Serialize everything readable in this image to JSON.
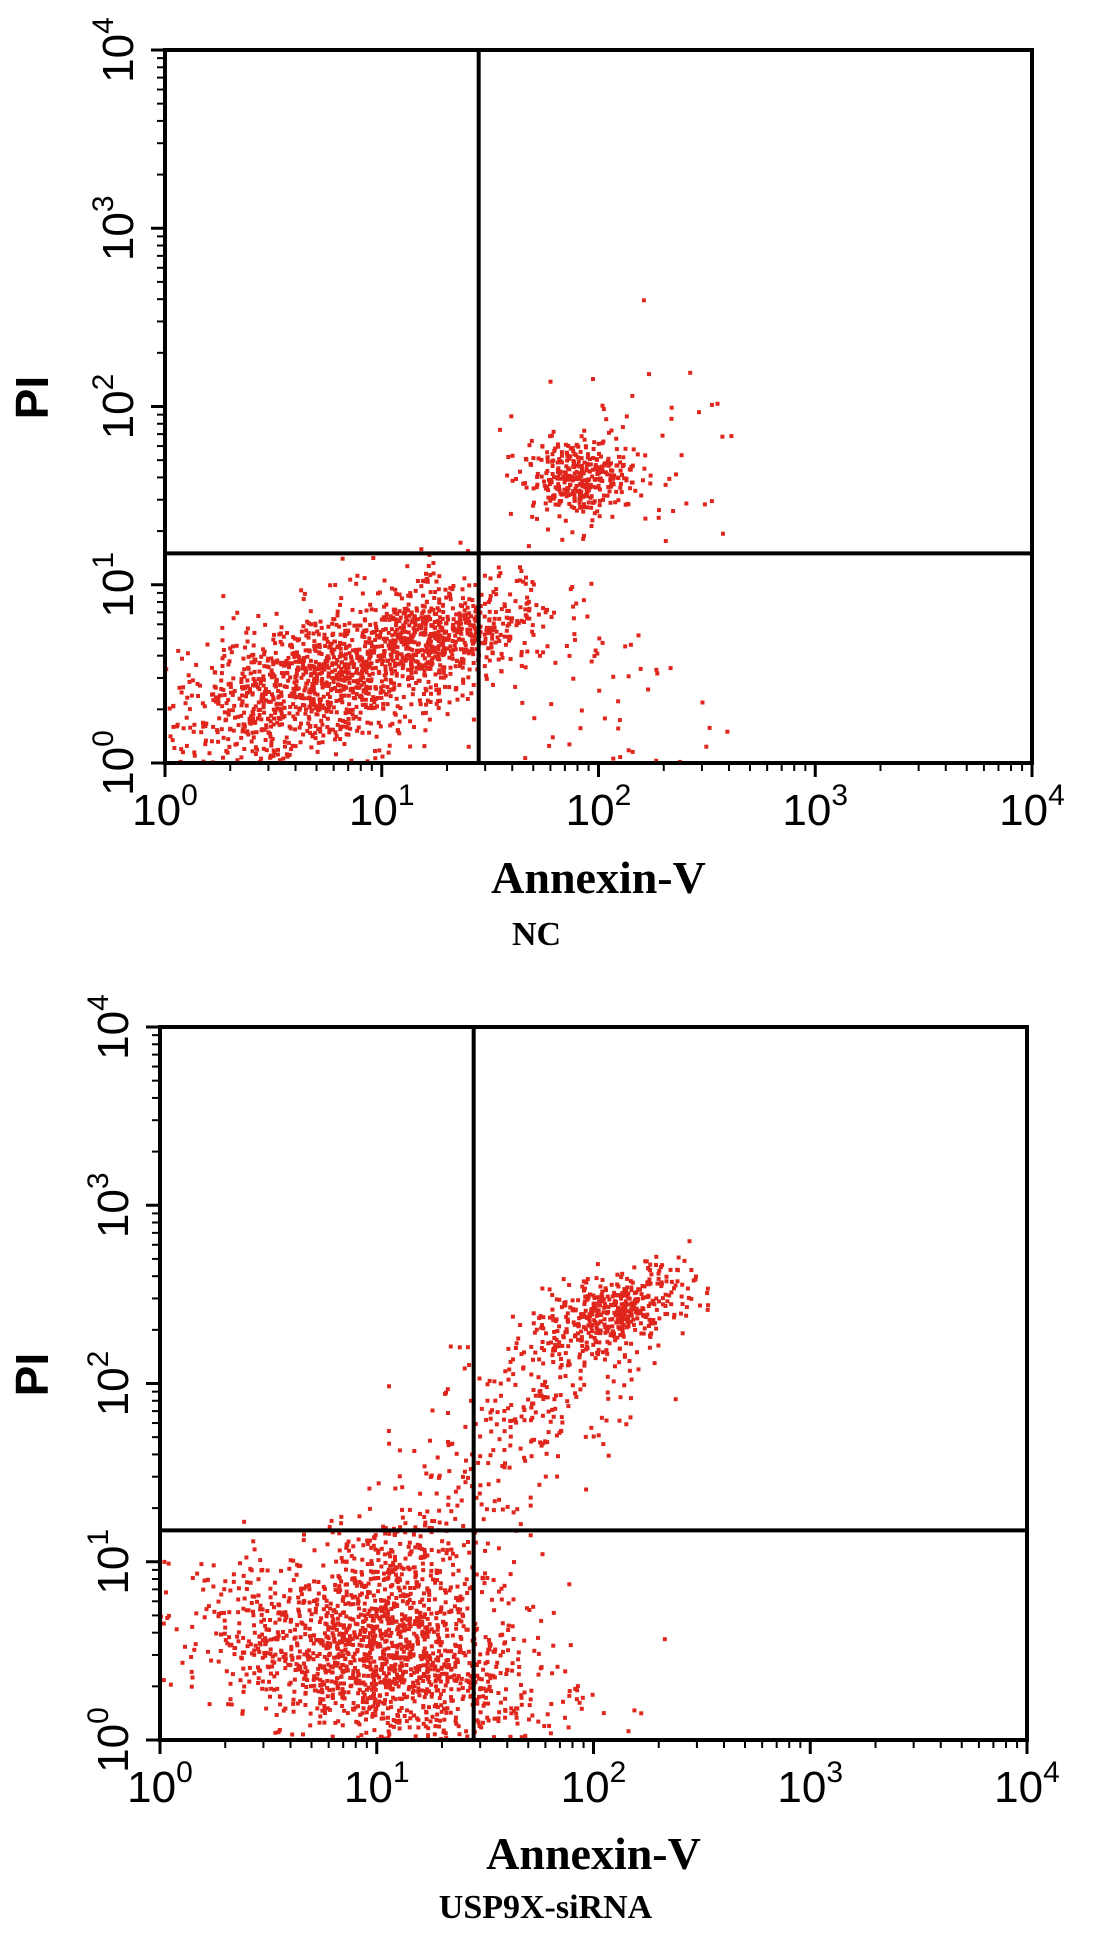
{
  "chart_data": [
    {
      "type": "scatter",
      "title": "NC",
      "xlabel": "Annexin-V",
      "ylabel": "PI",
      "x_scale": "log",
      "y_scale": "log",
      "xlim": [
        1,
        10000
      ],
      "ylim": [
        1,
        10000
      ],
      "x_ticks": [
        {
          "value": 1,
          "base": "10",
          "exp": "0"
        },
        {
          "value": 10,
          "base": "10",
          "exp": "1"
        },
        {
          "value": 100,
          "base": "10",
          "exp": "2"
        },
        {
          "value": 1000,
          "base": "10",
          "exp": "3"
        },
        {
          "value": 10000,
          "base": "10",
          "exp": "4"
        }
      ],
      "y_ticks": [
        {
          "value": 1,
          "base": "10",
          "exp": "0"
        },
        {
          "value": 10,
          "base": "10",
          "exp": "1"
        },
        {
          "value": 100,
          "base": "10",
          "exp": "2"
        },
        {
          "value": 1000,
          "base": "10",
          "exp": "3"
        },
        {
          "value": 10000,
          "base": "10",
          "exp": "4"
        }
      ],
      "quadrant_gate": {
        "x": 28,
        "y": 15
      },
      "point_color": "#e0261c",
      "grid": false,
      "legend": "none",
      "populations": [
        {
          "center_log": [
            0.75,
            0.45
          ],
          "spread_log": [
            0.45,
            0.2
          ],
          "orientation_deg": 28,
          "count": 1400
        },
        {
          "center_log": [
            1.25,
            0.7
          ],
          "spread_log": [
            0.25,
            0.12
          ],
          "orientation_deg": 20,
          "count": 450
        },
        {
          "center_log": [
            1.9,
            1.6
          ],
          "spread_log": [
            0.12,
            0.11
          ],
          "orientation_deg": 10,
          "count": 350
        },
        {
          "center_log": [
            1.9,
            0.3
          ],
          "spread_log": [
            0.35,
            0.35
          ],
          "orientation_deg": 0,
          "count": 70
        },
        {
          "center_log": [
            2.1,
            1.7
          ],
          "spread_log": [
            0.3,
            0.25
          ],
          "orientation_deg": 0,
          "count": 50
        }
      ]
    },
    {
      "type": "scatter",
      "title": "USP9X-siRNA",
      "xlabel": "Annexin-V",
      "ylabel": "PI",
      "x_scale": "log",
      "y_scale": "log",
      "xlim": [
        1,
        10000
      ],
      "ylim": [
        1,
        10000
      ],
      "x_ticks": [
        {
          "value": 1,
          "base": "10",
          "exp": "0"
        },
        {
          "value": 10,
          "base": "10",
          "exp": "1"
        },
        {
          "value": 100,
          "base": "10",
          "exp": "2"
        },
        {
          "value": 1000,
          "base": "10",
          "exp": "3"
        },
        {
          "value": 10000,
          "base": "10",
          "exp": "4"
        }
      ],
      "y_ticks": [
        {
          "value": 1,
          "base": "10",
          "exp": "0"
        },
        {
          "value": 10,
          "base": "10",
          "exp": "1"
        },
        {
          "value": 100,
          "base": "10",
          "exp": "2"
        },
        {
          "value": 1000,
          "base": "10",
          "exp": "3"
        },
        {
          "value": 10000,
          "base": "10",
          "exp": "4"
        }
      ],
      "quadrant_gate": {
        "x": 28,
        "y": 15
      },
      "point_color": "#e0261c",
      "grid": false,
      "legend": "none",
      "populations": [
        {
          "center_log": [
            1.0,
            0.45
          ],
          "spread_log": [
            0.22,
            0.4
          ],
          "orientation_deg": 70,
          "count": 1500
        },
        {
          "center_log": [
            1.1,
            0.9
          ],
          "spread_log": [
            0.18,
            0.2
          ],
          "orientation_deg": 60,
          "count": 300
        },
        {
          "center_log": [
            2.1,
            2.4
          ],
          "spread_log": [
            0.2,
            0.1
          ],
          "orientation_deg": 30,
          "count": 450
        },
        {
          "center_log": [
            1.75,
            1.9
          ],
          "spread_log": [
            0.25,
            0.18
          ],
          "orientation_deg": 45,
          "count": 200
        },
        {
          "center_log": [
            1.4,
            1.3
          ],
          "spread_log": [
            0.2,
            0.22
          ],
          "orientation_deg": 45,
          "count": 80
        }
      ]
    }
  ]
}
